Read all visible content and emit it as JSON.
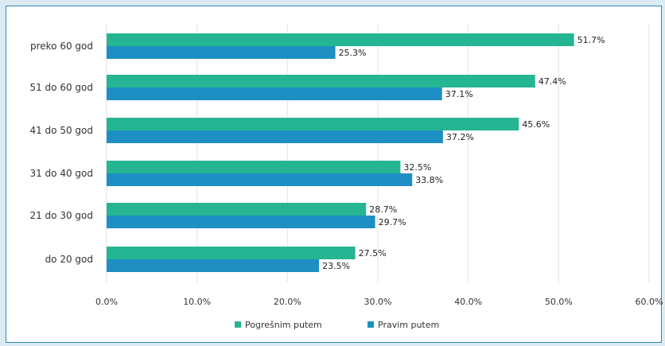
{
  "chart_data": {
    "type": "bar",
    "orientation": "horizontal",
    "categories": [
      "preko 60 god",
      "51 do 60 god",
      "41 do 50 god",
      "31 do 40 god",
      "21 do 30 god",
      "do 20 god"
    ],
    "series": [
      {
        "name": "Pogrešnim putem",
        "color": "#25b592",
        "values": [
          51.7,
          47.4,
          45.6,
          32.5,
          28.7,
          27.5
        ]
      },
      {
        "name": "Pravim putem",
        "color": "#1d8fc2",
        "values": [
          25.3,
          37.1,
          37.2,
          33.8,
          29.7,
          23.5
        ]
      }
    ],
    "value_labels": [
      [
        "51.7%",
        "47.4%",
        "45.6%",
        "32.5%",
        "28.7%",
        "27.5%"
      ],
      [
        "25.3%",
        "37.1%",
        "37.2%",
        "33.8%",
        "29.7%",
        "23.5%"
      ]
    ],
    "xticks": [
      "0.0%",
      "10.0%",
      "20.0%",
      "30.0%",
      "40.0%",
      "50.0%",
      "60.0%"
    ],
    "xlim": [
      0,
      60
    ],
    "grid": true,
    "legend_position": "bottom",
    "legend": [
      "Pogrešnim putem",
      "Pravim putem"
    ]
  }
}
